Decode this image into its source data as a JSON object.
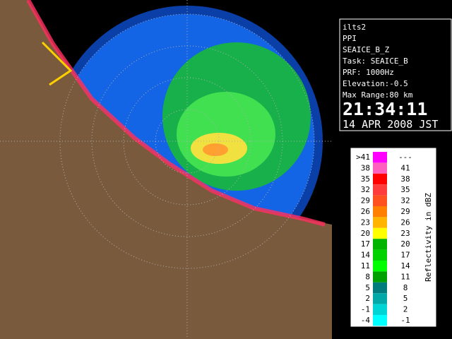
{
  "info": {
    "lines": [
      "ilts2",
      "PPI",
      "SEAICE_B_Z",
      "Task: SEAICE_B",
      "PRF: 1000Hz",
      "Elevation:-0.5",
      "Max Range:80 km"
    ],
    "time": "21:34:11",
    "date": "14 APR 2008 JST"
  },
  "legend": {
    "title": "Reflectivity in dBZ",
    "rows": [
      {
        "low": ">41",
        "high": "---",
        "color": "#ff00ff"
      },
      {
        "low": "38",
        "high": "41",
        "color": "#ff60c0"
      },
      {
        "low": "35",
        "high": "38",
        "color": "#ff0000"
      },
      {
        "low": "32",
        "high": "35",
        "color": "#ff3c3c"
      },
      {
        "low": "29",
        "high": "32",
        "color": "#ff5020"
      },
      {
        "low": "26",
        "high": "29",
        "color": "#ff8000"
      },
      {
        "low": "23",
        "high": "26",
        "color": "#ffb400"
      },
      {
        "low": "20",
        "high": "23",
        "color": "#ffff00"
      },
      {
        "low": "17",
        "high": "20",
        "color": "#00b400"
      },
      {
        "low": "14",
        "high": "17",
        "color": "#00d200"
      },
      {
        "low": "11",
        "high": "14",
        "color": "#00ff00"
      },
      {
        "low": "8",
        "high": "11",
        "color": "#00a000"
      },
      {
        "low": "5",
        "high": "8",
        "color": "#007c7c"
      },
      {
        "low": "2",
        "high": "5",
        "color": "#00a8a8"
      },
      {
        "low": "-1",
        "high": "2",
        "color": "#00d4d4"
      },
      {
        "low": "-4",
        "high": "-1",
        "color": "#00ffff"
      }
    ]
  }
}
